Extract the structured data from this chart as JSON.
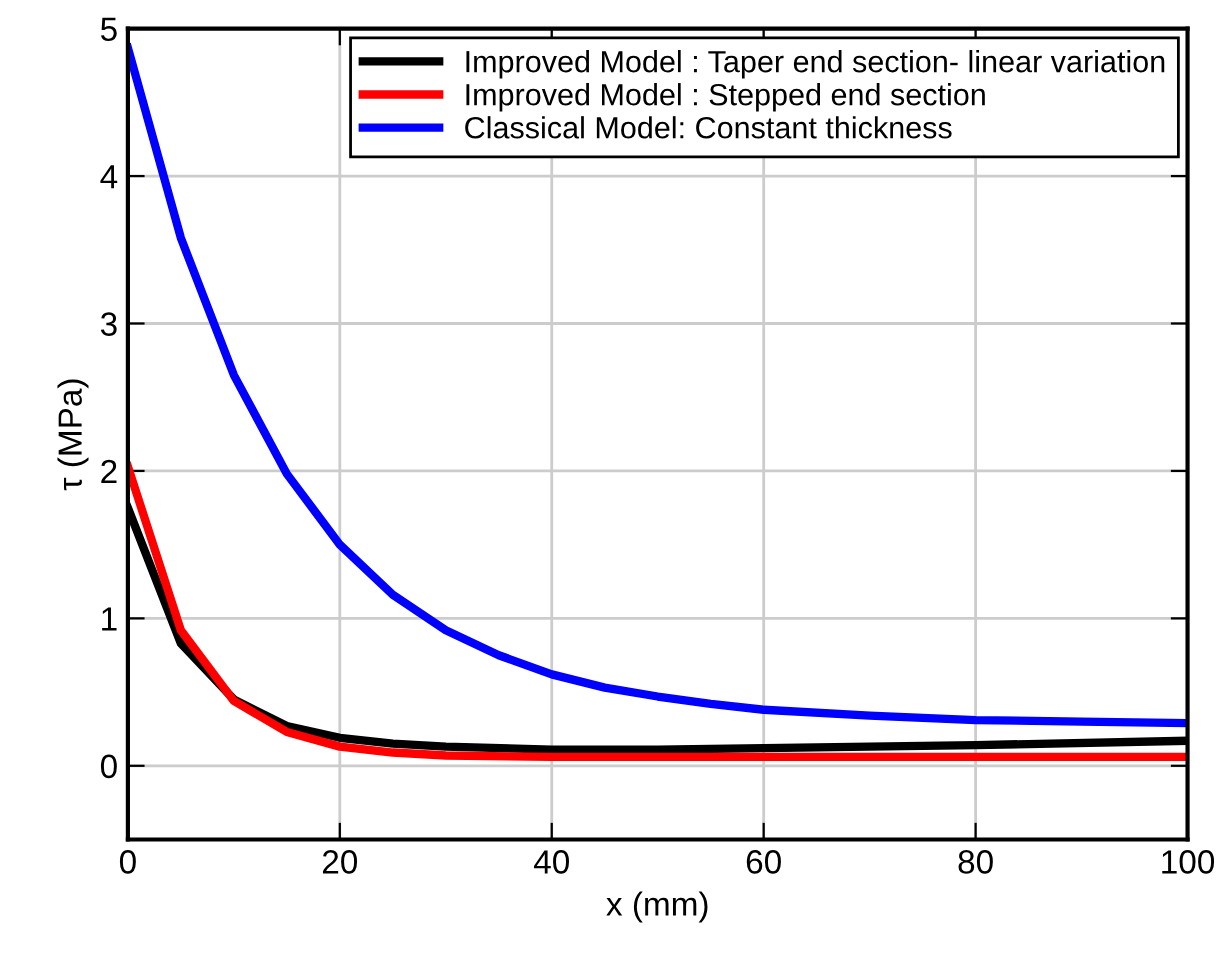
{
  "chart_data": {
    "type": "line",
    "xlabel": "x (mm)",
    "ylabel": "τ (MPa)",
    "xlim": [
      0,
      100
    ],
    "xticks": [
      0,
      20,
      40,
      60,
      80,
      100
    ],
    "ylim": [
      -0.5,
      5
    ],
    "yticks": [
      0,
      1,
      2,
      3,
      4,
      5
    ],
    "grid": true,
    "legend": "top right",
    "line_style": "solid",
    "marker": "none",
    "series": [
      {
        "name": "Improved Model : Taper end section- linear variation",
        "color": "#000000",
        "x": [
          0,
          5,
          10,
          15,
          20,
          25,
          30,
          40,
          50,
          60,
          80,
          100
        ],
        "values": [
          1.75,
          0.83,
          0.45,
          0.27,
          0.19,
          0.15,
          0.13,
          0.11,
          0.11,
          0.12,
          0.14,
          0.17
        ]
      },
      {
        "name": "Improved Model : Stepped end section",
        "color": "#ff0000",
        "x": [
          0,
          5,
          10,
          15,
          20,
          25,
          30,
          40,
          100
        ],
        "values": [
          2.03,
          0.92,
          0.44,
          0.23,
          0.13,
          0.09,
          0.07,
          0.06,
          0.06
        ]
      },
      {
        "name": "Classical Model: Constant thickness",
        "color": "#0000ff",
        "x": [
          0,
          5,
          10,
          15,
          20,
          25,
          30,
          35,
          40,
          45,
          50,
          55,
          60,
          70,
          80,
          90,
          100
        ],
        "values": [
          4.87,
          3.58,
          2.65,
          1.98,
          1.5,
          1.16,
          0.92,
          0.75,
          0.62,
          0.53,
          0.47,
          0.42,
          0.38,
          0.34,
          0.31,
          0.3,
          0.29
        ]
      }
    ]
  }
}
